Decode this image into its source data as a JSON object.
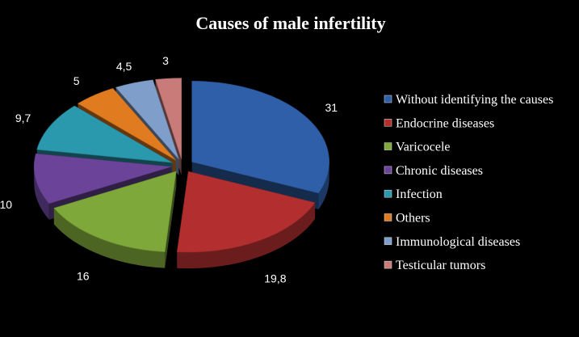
{
  "chart_data": {
    "type": "pie",
    "title": "Causes of male infertility",
    "categories": [
      "Without identifying the causes",
      "Endocrine diseases",
      "Varicocele",
      "Chronic diseases",
      "Infection",
      "Others",
      "Immunological diseases",
      "Testicular tumors"
    ],
    "values": [
      31,
      19.8,
      16,
      10,
      9.7,
      5,
      4.5,
      3
    ],
    "value_labels": [
      "31",
      "19,8",
      "16",
      "10",
      "9,7",
      "5",
      "4,5",
      "3"
    ],
    "colors": [
      "#2f5fa8",
      "#b32f2f",
      "#7fa83a",
      "#6b4499",
      "#2a98ad",
      "#e07b1f",
      "#7f9ec9",
      "#c97b7a"
    ],
    "style": "3d-exploded",
    "legend_position": "right"
  }
}
